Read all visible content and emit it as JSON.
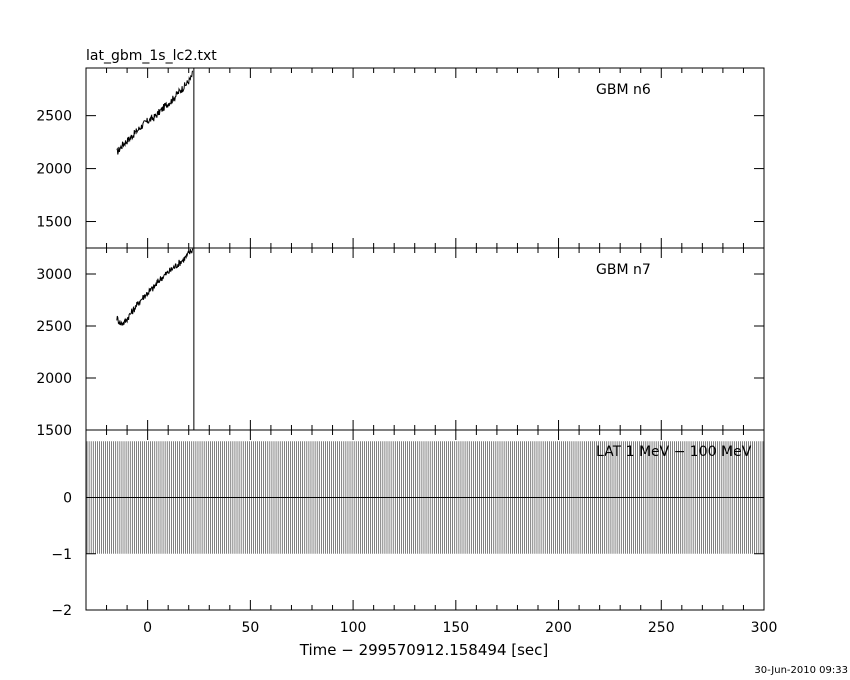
{
  "title": "lat_gbm_1s_lc2.txt",
  "xlabel": "Time − 299570912.158494 [sec]",
  "timestamp": "30-Jun-2010 09:33",
  "chart_data": [
    {
      "type": "line",
      "label": "GBM n6",
      "xlim": [
        -30,
        300
      ],
      "ylim": [
        1250,
        2950
      ],
      "yticks": [
        1500,
        2000,
        2500
      ],
      "ytick_labels": [
        "1500",
        "2000",
        "2500"
      ],
      "series": [
        {
          "x": [
            -15,
            -12,
            -9,
            -6,
            -3,
            0,
            3,
            6,
            9,
            12,
            15,
            18,
            21,
            22
          ],
          "y": [
            2150,
            2230,
            2280,
            2340,
            2400,
            2450,
            2480,
            2540,
            2600,
            2650,
            2720,
            2780,
            2850,
            2900
          ]
        }
      ]
    },
    {
      "type": "line",
      "label": "GBM n7",
      "xlim": [
        -30,
        300
      ],
      "ylim": [
        1500,
        3250
      ],
      "yticks": [
        1500,
        2000,
        2500,
        3000
      ],
      "ytick_labels": [
        "1500",
        "2000",
        "2500",
        "3000"
      ],
      "series": [
        {
          "x": [
            -15,
            -13,
            -11,
            -9,
            -6,
            -3,
            0,
            3,
            6,
            9,
            12,
            15,
            18,
            21,
            22
          ],
          "y": [
            2580,
            2520,
            2540,
            2600,
            2680,
            2760,
            2820,
            2870,
            2950,
            3000,
            3050,
            3100,
            3150,
            3220,
            3230
          ]
        }
      ]
    },
    {
      "type": "line",
      "label": "LAT 1 MeV − 100 MeV",
      "xlim": [
        -30,
        300
      ],
      "ylim": [
        -2,
        1.2
      ],
      "yticks": [
        -2,
        -1,
        0
      ],
      "ytick_labels": [
        "−2",
        "−1",
        "0"
      ],
      "series": [
        {
          "x": [
            -30,
            300
          ],
          "y": [
            0,
            0
          ],
          "error_band": [
            -1,
            1
          ]
        }
      ]
    }
  ],
  "xticks": [
    0,
    50,
    100,
    150,
    200,
    250,
    300
  ],
  "xtick_labels": [
    "0",
    "50",
    "100",
    "150",
    "200",
    "250",
    "300"
  ],
  "markers": [
    {
      "x": 22.5
    }
  ]
}
